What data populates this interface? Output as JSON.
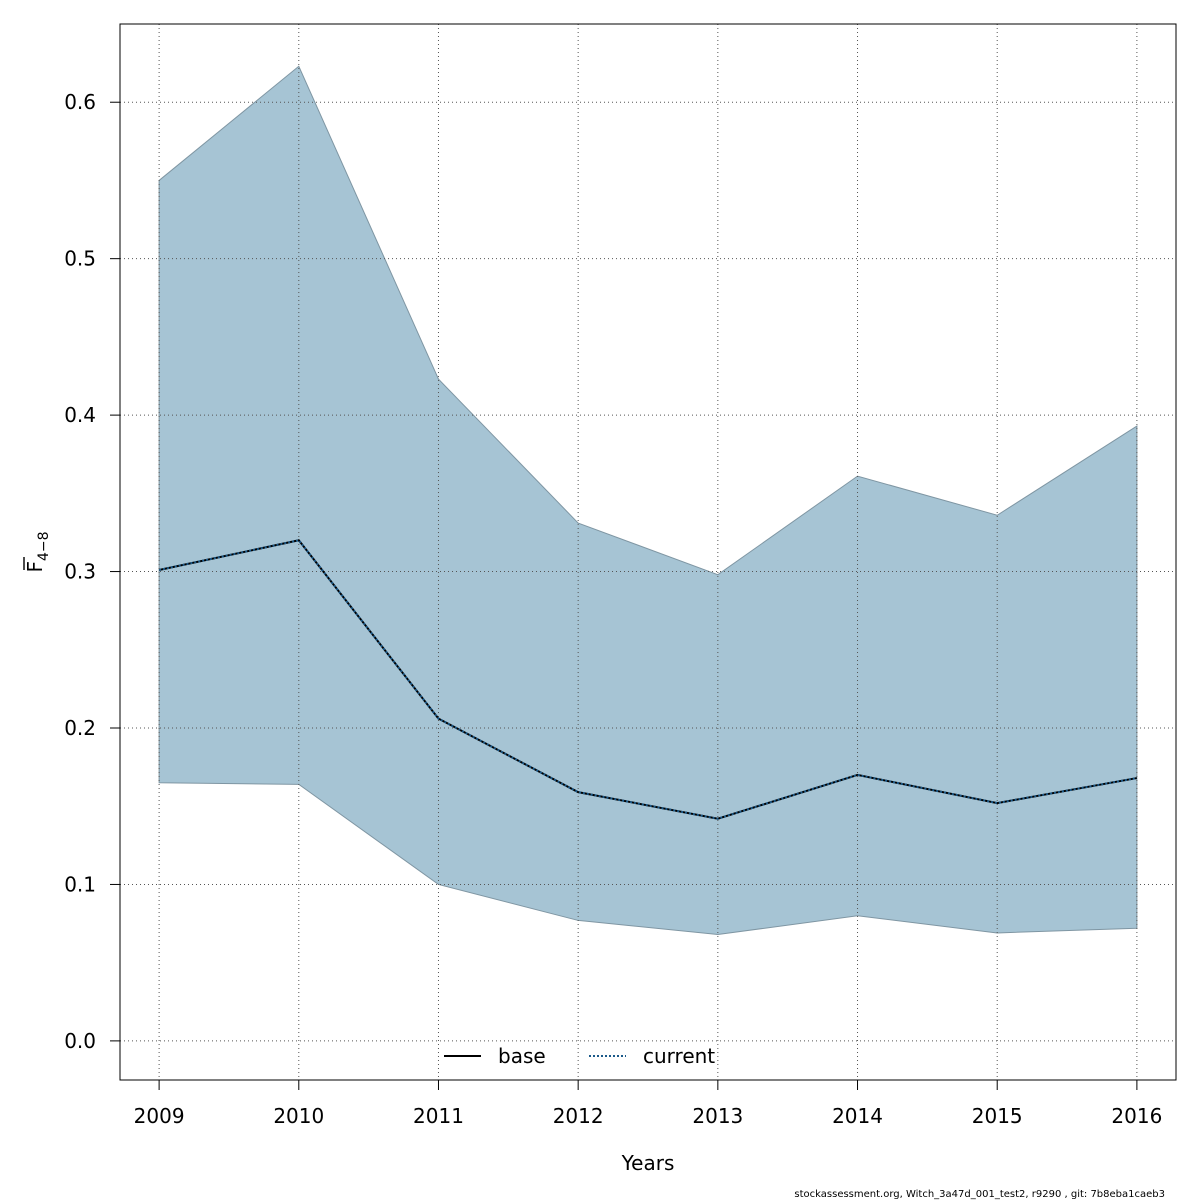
{
  "chart_data": {
    "type": "area",
    "title": "",
    "xlabel": "Years",
    "ylabel": {
      "main": "F",
      "subscript": "4−8"
    },
    "x": [
      2009,
      2010,
      2011,
      2012,
      2013,
      2014,
      2015,
      2016
    ],
    "xlim": [
      2008.72,
      2016.28
    ],
    "ylim": [
      -0.025,
      0.65
    ],
    "x_ticks": [
      "2009",
      "2010",
      "2011",
      "2012",
      "2013",
      "2014",
      "2015",
      "2016"
    ],
    "y_ticks": [
      "0.0",
      "0.1",
      "0.2",
      "0.3",
      "0.4",
      "0.5",
      "0.6"
    ],
    "y_tick_values": [
      0.0,
      0.1,
      0.2,
      0.3,
      0.4,
      0.5,
      0.6
    ],
    "grid": true,
    "legend_position": "bottom-center",
    "band": {
      "color": "#a6c4d4",
      "upper": [
        0.55,
        0.623,
        0.423,
        0.331,
        0.298,
        0.361,
        0.336,
        0.393
      ],
      "lower": [
        0.165,
        0.164,
        0.1,
        0.077,
        0.068,
        0.08,
        0.069,
        0.072
      ]
    },
    "series": [
      {
        "name": "base",
        "style": "solid",
        "color": "#000000",
        "values": [
          0.301,
          0.32,
          0.206,
          0.159,
          0.142,
          0.17,
          0.152,
          0.168
        ]
      },
      {
        "name": "current",
        "style": "dotted",
        "color": "#1b5a8a",
        "values": [
          0.301,
          0.32,
          0.206,
          0.159,
          0.142,
          0.17,
          0.152,
          0.168
        ]
      }
    ]
  },
  "footer": "stockassessment.org, Witch_3a47d_001_test2, r9290 , git: 7b8eba1caeb3"
}
